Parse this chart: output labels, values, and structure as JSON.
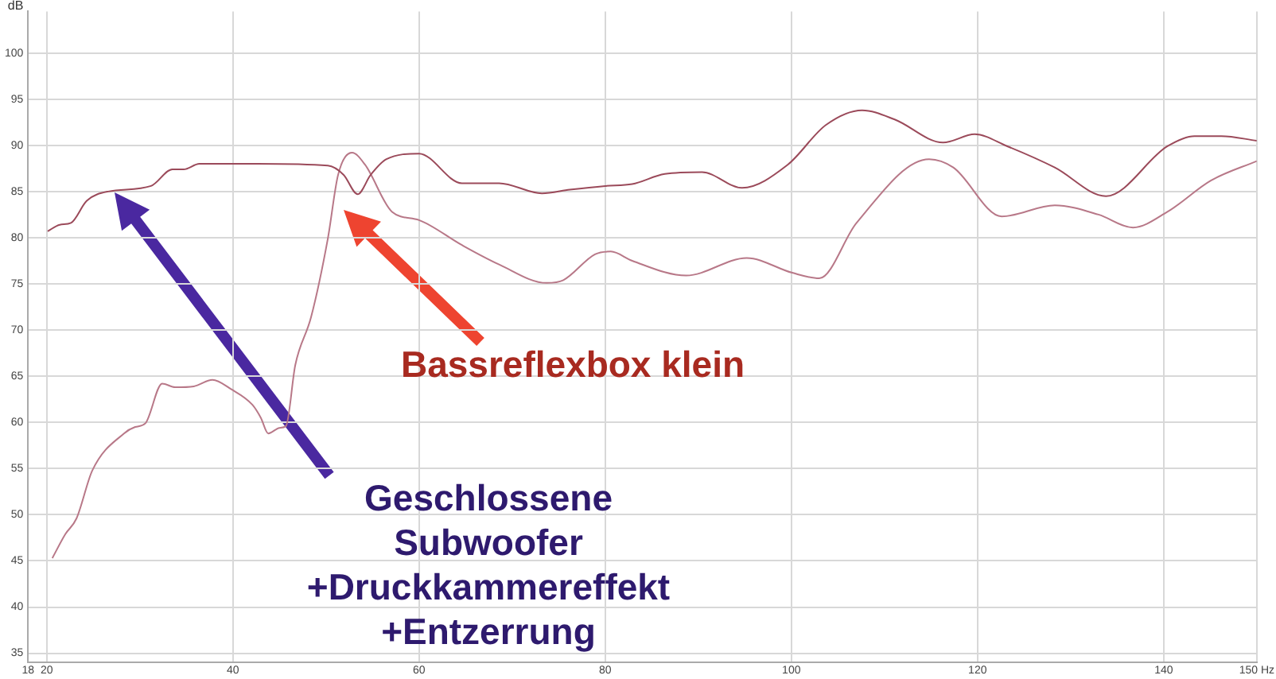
{
  "chart_data": {
    "type": "line",
    "ylabel": "dB",
    "xlim": [
      18,
      150
    ],
    "ylim": [
      34,
      104.5
    ],
    "xticks": [
      18,
      20,
      40,
      60,
      80,
      100,
      120,
      140,
      {
        "value": 150,
        "label": "150 Hz"
      }
    ],
    "yticks": [
      35,
      40,
      45,
      50,
      55,
      60,
      65,
      70,
      75,
      80,
      85,
      90,
      95,
      100
    ],
    "grid": true,
    "legend": false,
    "marker": "none",
    "line_style": "solid",
    "series": [
      {
        "color": "#9b4a5a",
        "x": [
          20.1,
          21.4,
          22.6,
          24.3,
          26.6,
          31.2,
          33.5,
          34.7,
          36.4,
          42.7,
          50.2,
          51.9,
          53.4,
          54.8,
          56.5,
          60.0,
          64.6,
          68.6,
          73.2,
          76.2,
          80.0,
          82.9,
          86.4,
          90.4,
          94.7,
          99.6,
          103.7,
          107.6,
          111.1,
          116.3,
          119.7,
          123.2,
          128.3,
          133.8,
          140.4,
          143.3,
          146.2,
          150
        ],
        "values": [
          80.7,
          81.4,
          81.6,
          84.0,
          85.0,
          85.6,
          87.4,
          87.4,
          88.0,
          88.0,
          87.8,
          86.8,
          84.7,
          86.8,
          88.5,
          89.1,
          85.9,
          85.9,
          84.8,
          85.2,
          85.6,
          85.8,
          86.9,
          87.1,
          85.4,
          87.9,
          92.2,
          93.8,
          92.8,
          90.3,
          91.2,
          89.9,
          87.6,
          84.5,
          89.9,
          91.0,
          91.0,
          90.5
        ]
      },
      {
        "color": "#b87888",
        "x": [
          20.6,
          22.0,
          23.2,
          24.9,
          28.3,
          29.5,
          30.6,
          32.4,
          33.8,
          35.8,
          37.8,
          39.8,
          42.1,
          43.0,
          43.8,
          45.0,
          45.7,
          46.7,
          48.4,
          50.2,
          51.3,
          52.8,
          54.2,
          57.1,
          60.0,
          64.6,
          68.6,
          73.7,
          75.5,
          78.9,
          80.6,
          82.9,
          88.7,
          95.2,
          100.1,
          103.0,
          107.0,
          114.8,
          117.4,
          122.6,
          128.3,
          133.0,
          136.7,
          140.4,
          145.1,
          150
        ],
        "values": [
          45.3,
          47.9,
          49.6,
          54.8,
          58.8,
          59.5,
          59.9,
          64.2,
          63.8,
          63.9,
          64.6,
          63.6,
          61.9,
          60.5,
          58.8,
          59.4,
          59.6,
          66.2,
          71.4,
          79.9,
          86.8,
          89.2,
          87.9,
          82.8,
          81.9,
          79.2,
          77.1,
          75.1,
          75.4,
          78.2,
          78.5,
          77.5,
          75.9,
          77.8,
          76.2,
          75.6,
          81.6,
          88.5,
          87.6,
          82.3,
          83.5,
          82.5,
          81.1,
          82.8,
          86.2,
          88.3
        ]
      }
    ],
    "annotations": [
      "Bassreflexbox klein",
      "Geschlossene Subwoofer +Druckkammereffekt +Entzerrung"
    ]
  }
}
